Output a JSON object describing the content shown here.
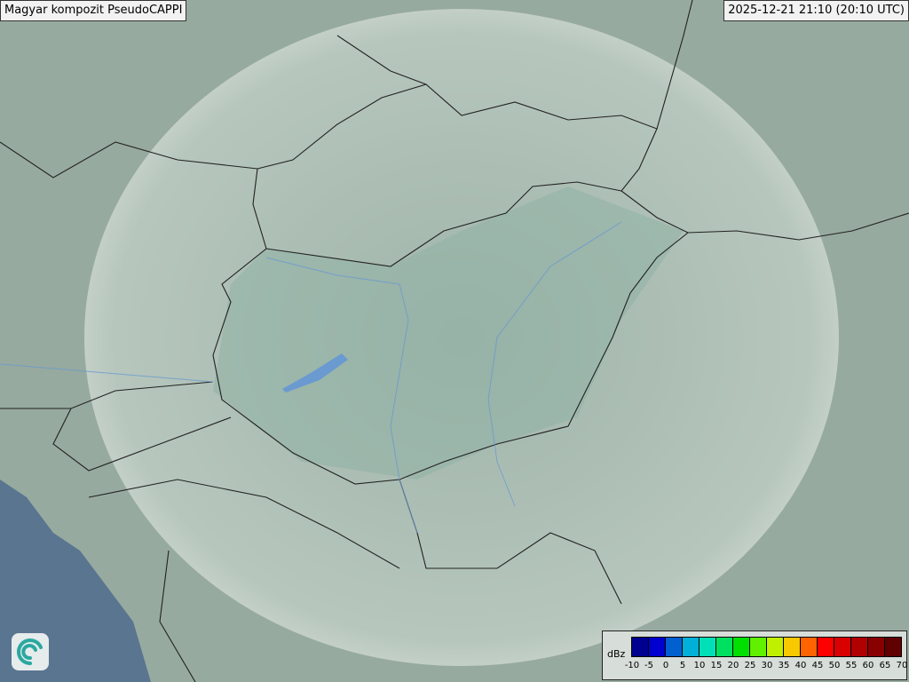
{
  "title": "Magyar kompozit  PseudoCAPPI",
  "timestamp": "2025-12-21 21:10 (20:10 UTC)",
  "logo_icon": "swirl-logo-icon",
  "legend": {
    "unit": "dBz",
    "ticks": [
      "-10",
      "-5",
      "0",
      "5",
      "10",
      "15",
      "20",
      "25",
      "30",
      "35",
      "40",
      "45",
      "50",
      "55",
      "60",
      "65",
      "70"
    ],
    "colors": [
      "#000090",
      "#0000d0",
      "#0060d0",
      "#00b0d8",
      "#00e0b8",
      "#00e060",
      "#00e000",
      "#60f000",
      "#c0f000",
      "#f8c800",
      "#ff6400",
      "#ff0000",
      "#d80000",
      "#b00000",
      "#880000",
      "#600000"
    ]
  },
  "colors": {
    "sea": "#5a7590",
    "land": "#93a79c",
    "coverage": "#d8e2dc",
    "border": "#222222",
    "river": "#6a9ad0"
  }
}
